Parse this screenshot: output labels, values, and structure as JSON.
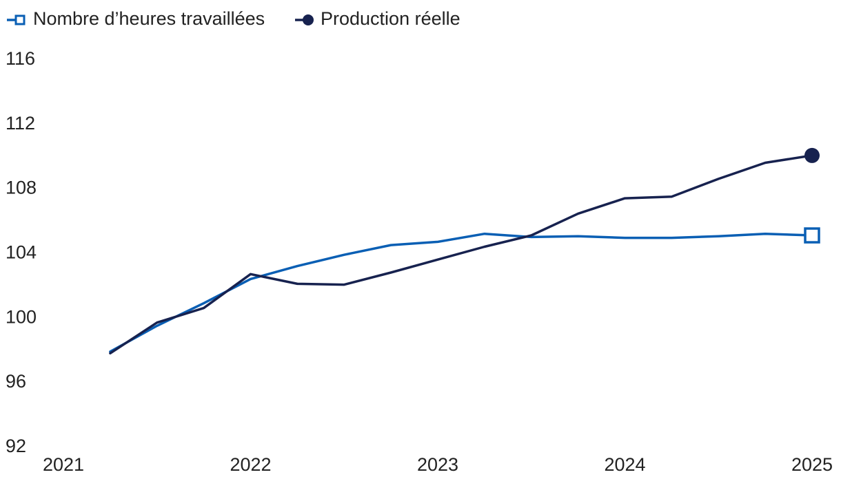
{
  "chart_data": {
    "type": "line",
    "title": "",
    "xlabel": "",
    "ylabel": "",
    "xlim": [
      2021,
      2025
    ],
    "ylim": [
      92,
      116
    ],
    "x_ticks": [
      "2021",
      "2022",
      "2023",
      "2024",
      "2025"
    ],
    "y_ticks": [
      "116",
      "112",
      "108",
      "104",
      "100",
      "96",
      "92"
    ],
    "grid": false,
    "legend_position": "top-left",
    "x": [
      2021.25,
      2021.5,
      2021.75,
      2022.0,
      2022.25,
      2022.5,
      2022.75,
      2023.0,
      2023.25,
      2023.5,
      2023.75,
      2024.0,
      2024.25,
      2024.5,
      2024.75,
      2025.0
    ],
    "series": [
      {
        "name": "Nombre d’heures travaillées",
        "color": "#0a5fb4",
        "marker": "hollow-square",
        "values": [
          97.8,
          99.4,
          100.8,
          102.3,
          103.1,
          103.8,
          104.4,
          104.6,
          105.1,
          104.9,
          104.95,
          104.85,
          104.85,
          104.95,
          105.1,
          105.0
        ]
      },
      {
        "name": "Production réelle",
        "color": "#17224f",
        "marker": "filled-circle",
        "values": [
          97.7,
          99.6,
          100.5,
          102.6,
          102.0,
          101.95,
          102.7,
          103.5,
          104.3,
          105.0,
          106.35,
          107.3,
          107.4,
          108.5,
          109.5,
          109.95
        ]
      }
    ]
  }
}
